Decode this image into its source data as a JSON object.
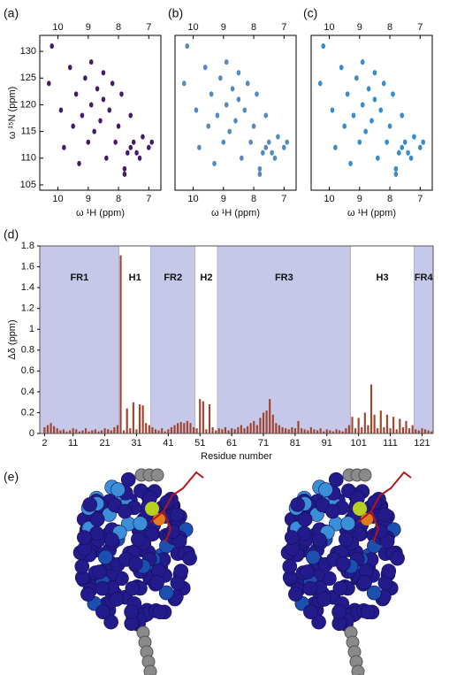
{
  "chart_data": [
    {
      "type": "scatter",
      "label": "(a)",
      "x_label": "ω ¹H (ppm)",
      "y_label": "ω ¹⁵N (ppm)",
      "xlim": [
        10.6,
        6.6
      ],
      "ylim": [
        104,
        133
      ],
      "xticks": [
        10,
        9,
        8,
        7
      ],
      "yticks": [
        105,
        110,
        115,
        120,
        125,
        130
      ],
      "x": [
        10.3,
        10.2,
        9.9,
        9.8,
        9.6,
        9.5,
        9.4,
        9.3,
        9.2,
        9.1,
        9.0,
        8.9,
        8.9,
        8.8,
        8.7,
        8.6,
        8.5,
        8.5,
        8.4,
        8.3,
        8.2,
        8.1,
        8.0,
        7.9,
        7.8,
        7.7,
        7.6,
        7.5,
        7.4,
        7.3,
        7.2,
        7.0,
        6.9,
        7.6,
        7.8
      ],
      "series": [
        {
          "color": "#c0202a",
          "values": [
            124,
            131,
            119,
            112,
            127,
            116,
            122,
            109,
            118,
            125,
            113,
            120,
            128,
            115,
            123,
            117,
            121,
            126,
            110,
            119,
            124,
            113,
            116,
            122,
            108,
            111,
            112,
            113,
            111,
            110,
            114,
            112,
            113,
            118,
            107
          ]
        },
        {
          "color": "#2a1c7a",
          "values": [
            124,
            131,
            119,
            112,
            127,
            116,
            122,
            109,
            118,
            125,
            113,
            120,
            128,
            115,
            123,
            117,
            121,
            126,
            110,
            119,
            124,
            113,
            116,
            122,
            108,
            111,
            112,
            113,
            111,
            110,
            114,
            112,
            113,
            118,
            107
          ]
        }
      ]
    },
    {
      "type": "scatter",
      "label": "(b)",
      "x_label": "ω ¹H (ppm)",
      "xlim": [
        10.6,
        6.6
      ],
      "ylim": [
        104,
        133
      ],
      "xticks": [
        10,
        9,
        8,
        7
      ],
      "x": [
        10.3,
        10.2,
        9.9,
        9.8,
        9.6,
        9.5,
        9.4,
        9.3,
        9.2,
        9.1,
        9.0,
        8.9,
        8.9,
        8.8,
        8.7,
        8.6,
        8.5,
        8.5,
        8.4,
        8.3,
        8.2,
        8.1,
        8.0,
        7.9,
        7.8,
        7.7,
        7.6,
        7.5,
        7.4,
        7.3,
        7.2,
        7.0,
        6.9,
        7.6,
        7.8
      ],
      "series": [
        {
          "color": "#c0202a",
          "values": [
            124,
            131,
            119,
            112,
            127,
            116,
            122,
            109,
            118,
            125,
            113,
            120,
            128,
            115,
            123,
            117,
            121,
            126,
            110,
            119,
            124,
            113,
            116,
            122,
            108,
            111,
            112,
            113,
            111,
            110,
            114,
            112,
            113,
            118,
            107
          ]
        },
        {
          "color": "#38a0e0",
          "values": [
            124,
            131,
            119,
            112,
            127,
            116,
            122,
            109,
            118,
            125,
            113,
            120,
            128,
            115,
            123,
            117,
            121,
            126,
            110,
            119,
            124,
            113,
            116,
            122,
            108,
            111,
            112,
            113,
            111,
            110,
            114,
            112,
            113,
            118,
            107
          ]
        }
      ]
    },
    {
      "type": "scatter",
      "label": "(c)",
      "x_label": "ω ¹H (ppm)",
      "xlim": [
        10.6,
        6.6
      ],
      "ylim": [
        104,
        133
      ],
      "xticks": [
        10,
        9,
        8,
        7
      ],
      "x": [
        10.3,
        10.2,
        9.9,
        9.8,
        9.6,
        9.5,
        9.4,
        9.3,
        9.2,
        9.1,
        9.0,
        8.9,
        8.9,
        8.8,
        8.7,
        8.6,
        8.5,
        8.5,
        8.4,
        8.3,
        8.2,
        8.1,
        8.0,
        7.9,
        7.8,
        7.7,
        7.6,
        7.5,
        7.4,
        7.3,
        7.2,
        7.0,
        6.9,
        7.6,
        7.8
      ],
      "series": [
        {
          "color": "#1a2a7a",
          "values": [
            124,
            131,
            119,
            112,
            127,
            116,
            122,
            109,
            118,
            125,
            113,
            120,
            128,
            115,
            123,
            117,
            121,
            126,
            110,
            119,
            124,
            113,
            116,
            122,
            108,
            111,
            112,
            113,
            111,
            110,
            114,
            112,
            113,
            118,
            107
          ]
        },
        {
          "color": "#38a0e0",
          "values": [
            124,
            131,
            119,
            112,
            127,
            116,
            122,
            109,
            118,
            125,
            113,
            120,
            128,
            115,
            123,
            117,
            121,
            126,
            110,
            119,
            124,
            113,
            116,
            122,
            108,
            111,
            112,
            113,
            111,
            110,
            114,
            112,
            113,
            118,
            107
          ]
        }
      ]
    },
    {
      "type": "bar",
      "label": "(d)",
      "x_label": "Residue number",
      "y_label": "Δδ (ppm)",
      "color": "#a0442f",
      "xlim": [
        0.5,
        124.5
      ],
      "ylim": [
        0,
        1.8
      ],
      "xticks": [
        2,
        11,
        21,
        31,
        41,
        51,
        61,
        71,
        81,
        91,
        101,
        111,
        121
      ],
      "yticks": [
        0,
        0.2,
        0.4,
        0.6,
        0.8,
        1,
        1.2,
        1.4,
        1.6,
        1.8
      ],
      "regions": [
        {
          "label": "FR1",
          "start": 0.5,
          "end": 25.5,
          "shaded": true
        },
        {
          "label": "H1",
          "start": 25.5,
          "end": 35.5,
          "shaded": false
        },
        {
          "label": "FR2",
          "start": 35.5,
          "end": 49.5,
          "shaded": true
        },
        {
          "label": "H2",
          "start": 49.5,
          "end": 56.5,
          "shaded": false
        },
        {
          "label": "FR3",
          "start": 56.5,
          "end": 98.5,
          "shaded": true
        },
        {
          "label": "H3",
          "start": 98.5,
          "end": 118.5,
          "shaded": false
        },
        {
          "label": "FR4",
          "start": 118.5,
          "end": 124.5,
          "shaded": true
        }
      ],
      "x": [
        2,
        3,
        4,
        5,
        6,
        7,
        8,
        9,
        10,
        11,
        12,
        13,
        14,
        15,
        16,
        17,
        18,
        19,
        20,
        21,
        22,
        23,
        24,
        25,
        26,
        27,
        28,
        29,
        30,
        31,
        32,
        33,
        34,
        35,
        36,
        37,
        38,
        39,
        40,
        41,
        42,
        43,
        44,
        45,
        46,
        47,
        48,
        49,
        50,
        51,
        52,
        53,
        54,
        55,
        56,
        57,
        58,
        59,
        60,
        61,
        62,
        63,
        64,
        65,
        66,
        67,
        68,
        69,
        70,
        71,
        72,
        73,
        74,
        75,
        76,
        77,
        78,
        79,
        80,
        81,
        82,
        83,
        84,
        85,
        86,
        87,
        88,
        89,
        90,
        91,
        92,
        93,
        94,
        95,
        96,
        97,
        98,
        99,
        100,
        101,
        102,
        103,
        104,
        105,
        106,
        107,
        108,
        109,
        110,
        111,
        112,
        113,
        114,
        115,
        116,
        117,
        118,
        119,
        120,
        121,
        122,
        123,
        124
      ],
      "values": [
        0.06,
        0.08,
        0.1,
        0.07,
        0.05,
        0.03,
        0.04,
        0.02,
        0.03,
        0.05,
        0.04,
        0.02,
        0.03,
        0.05,
        0.02,
        0.03,
        0.04,
        0.02,
        0.03,
        0.05,
        0.04,
        0.03,
        0.06,
        0.08,
        1.71,
        0.03,
        0.24,
        0.05,
        0.3,
        0.04,
        0.28,
        0.27,
        0.1,
        0.08,
        0.06,
        0.04,
        0.03,
        0.05,
        0.02,
        0.04,
        0.06,
        0.08,
        0.1,
        0.11,
        0.1,
        0.12,
        0.1,
        0.06,
        0.05,
        0.33,
        0.31,
        0.04,
        0.28,
        0.06,
        0.03,
        0.05,
        0.04,
        0.06,
        0.03,
        0.05,
        0.04,
        0.06,
        0.08,
        0.05,
        0.07,
        0.1,
        0.12,
        0.08,
        0.15,
        0.2,
        0.22,
        0.33,
        0.18,
        0.1,
        0.08,
        0.06,
        0.05,
        0.04,
        0.06,
        0.05,
        0.12,
        0.05,
        0.04,
        0.03,
        0.06,
        0.04,
        0.03,
        0.05,
        0.02,
        0.04,
        0.03,
        0.02,
        0.04,
        0.03,
        0.02,
        0.05,
        0.08,
        0.16,
        0.05,
        0.15,
        0.06,
        0.2,
        0.08,
        0.47,
        0.18,
        0.05,
        0.22,
        0.06,
        0.18,
        0.05,
        0.16,
        0.04,
        0.14,
        0.06,
        0.12,
        0.05,
        0.08,
        0.04,
        0.03,
        0.05,
        0.04,
        0.03,
        0.02
      ]
    }
  ],
  "panel_e": {
    "label": "(e)"
  }
}
